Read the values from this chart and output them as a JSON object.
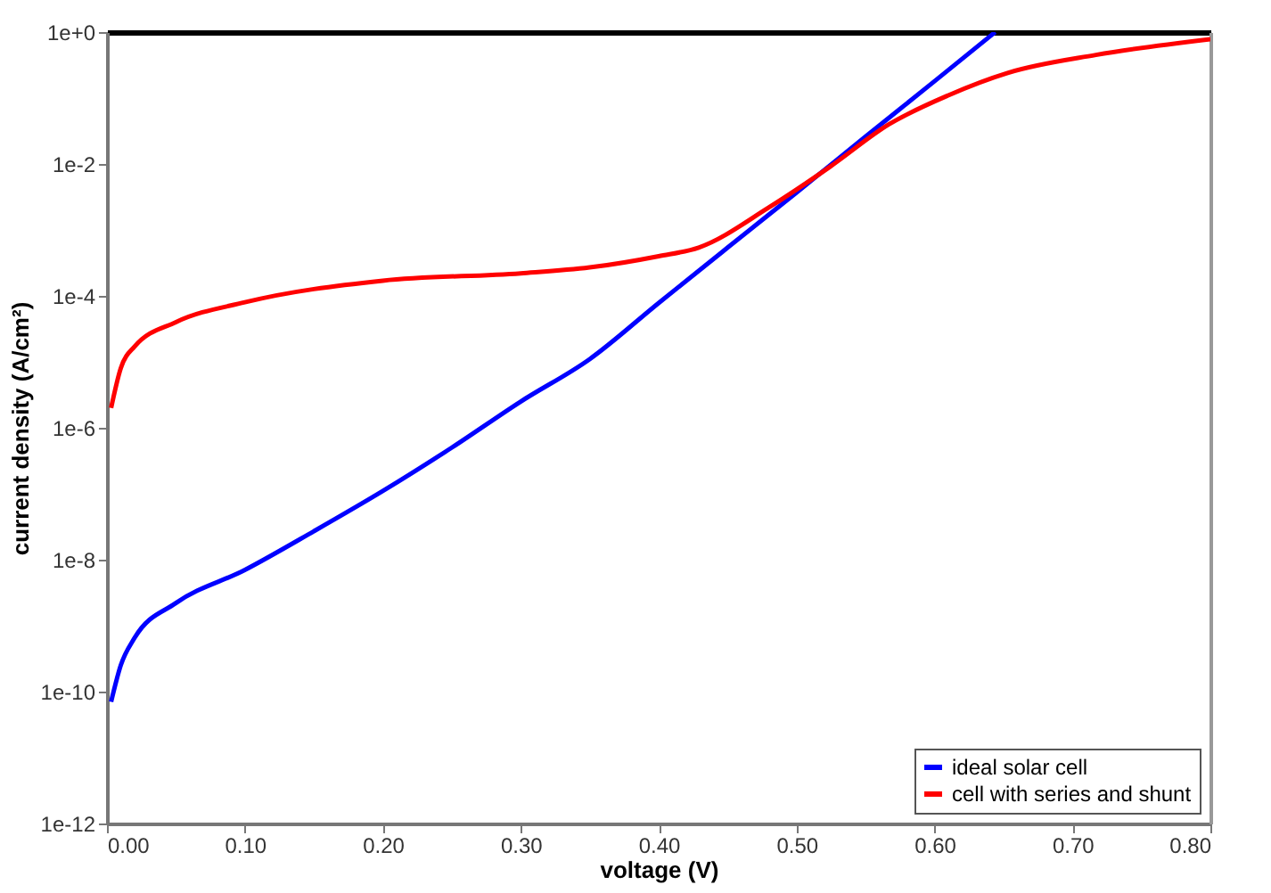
{
  "chart_data": {
    "type": "line",
    "xlabel": "voltage (V)",
    "ylabel": "current density (A/cm²)",
    "xlim": [
      0,
      0.8
    ],
    "ylim": [
      1e-12,
      1
    ],
    "xticks": [
      {
        "value": 0,
        "label": "0.00"
      },
      {
        "value": 0.1,
        "label": "0.10"
      },
      {
        "value": 0.2,
        "label": "0.20"
      },
      {
        "value": 0.3,
        "label": "0.30"
      },
      {
        "value": 0.4,
        "label": "0.40"
      },
      {
        "value": 0.5,
        "label": "0.50"
      },
      {
        "value": 0.6,
        "label": "0.60"
      },
      {
        "value": 0.7,
        "label": "0.70"
      },
      {
        "value": 0.8,
        "label": "0.80"
      }
    ],
    "yticks": [
      {
        "value": 1e-12,
        "label": "1e-12"
      },
      {
        "value": 1e-10,
        "label": "1e-10"
      },
      {
        "value": 1e-08,
        "label": "1e-8"
      },
      {
        "value": 1e-06,
        "label": "1e-6"
      },
      {
        "value": 0.0001,
        "label": "1e-4"
      },
      {
        "value": 0.01,
        "label": "1e-2"
      },
      {
        "value": 1,
        "label": "1e+0"
      }
    ],
    "log": "y",
    "grid": false,
    "legend": "bottom right",
    "marker": "none",
    "line_style": "solid",
    "series": [
      {
        "name": "ideal solar cell",
        "color": "#0000ff",
        "x": [
          0.003,
          0.01,
          0.02,
          0.05,
          0.1,
          0.15,
          0.2,
          0.25,
          0.3,
          0.35,
          0.4,
          0.45,
          0.5,
          0.55,
          0.6,
          0.644
        ],
        "values": [
          7e-11,
          2.5e-10,
          6.5e-10,
          2.2e-09,
          7e-09,
          2.7e-08,
          1.1e-07,
          5e-07,
          2.5e-06,
          1.1e-05,
          7.8e-05,
          0.00054,
          0.0037,
          0.026,
          0.18,
          1
        ]
      },
      {
        "name": "cell with series and shunt",
        "color": "#ff0000",
        "x": [
          0.003,
          0.01,
          0.02,
          0.05,
          0.1,
          0.2,
          0.3,
          0.35,
          0.4,
          0.429,
          0.48,
          0.524,
          0.567,
          0.61,
          0.653,
          0.717,
          0.8
        ],
        "values": [
          2e-06,
          8e-06,
          1.7e-05,
          4e-05,
          8e-05,
          0.00017,
          0.00022,
          0.00027,
          0.0004,
          0.00054,
          0.0022,
          0.009,
          0.04,
          0.11,
          0.24,
          0.45,
          0.78
        ]
      }
    ]
  }
}
